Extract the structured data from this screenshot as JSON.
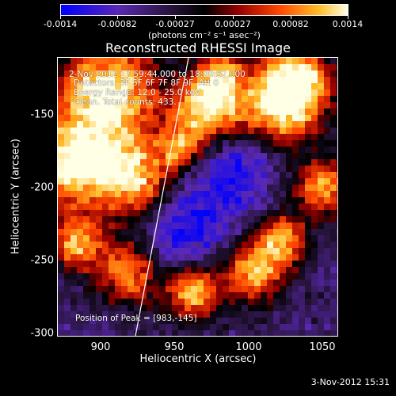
{
  "colorbar": {
    "tick_labels": [
      "-0.0014",
      "-0.00082",
      "-0.00027",
      "0.00027",
      "0.00082",
      "0.0014"
    ],
    "units": "(photons cm⁻² s⁻¹ asec⁻²)"
  },
  "title": "Reconstructed RHESSI Image",
  "annotations": {
    "time": "2-Nov-2012 17:59:44.000 to 18:00:52.000",
    "detectors": "Detectors: 3F 5F 6F 7F 8F 9F, Att 0",
    "energy": "Energy Range: 12.0 - 25.0 keV",
    "clean": "Clean. Total counts: 433.",
    "peak": "Position of Peak = [983,-145]"
  },
  "axes": {
    "xlabel": "Heliocentric X (arcsec)",
    "ylabel": "Heliocentric Y (arcsec)",
    "xticks": [
      "900",
      "950",
      "1000",
      "1050"
    ],
    "yticks": [
      "-150",
      "-200",
      "-250",
      "-300"
    ]
  },
  "timestamp": "3-Nov-2012 15:31"
}
